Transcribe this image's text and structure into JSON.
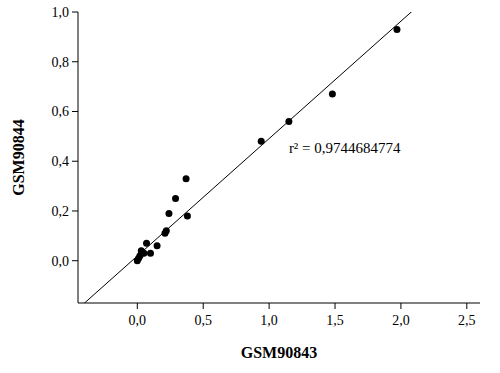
{
  "chart_data": {
    "type": "scatter",
    "x_label": "GSM90843",
    "y_label": "GSM90844",
    "annotation": "r² = 0,9744684774",
    "x": [
      0.0,
      0.01,
      0.02,
      0.03,
      0.05,
      0.07,
      0.1,
      0.15,
      0.21,
      0.22,
      0.24,
      0.29,
      0.37,
      0.38,
      0.94,
      1.15,
      1.48,
      1.97
    ],
    "values": [
      0.0,
      0.01,
      0.02,
      0.04,
      0.03,
      0.07,
      0.03,
      0.06,
      0.11,
      0.12,
      0.19,
      0.25,
      0.33,
      0.18,
      0.48,
      0.56,
      0.67,
      0.93
    ],
    "fit": {
      "slope": 0.472,
      "intercept": 0.019
    },
    "color": "#000000",
    "marker": "circle",
    "xlim": [
      -0.45,
      2.6
    ],
    "ylim": [
      -0.17,
      1.0
    ],
    "xticks": [
      {
        "value": 0,
        "label": "0,0"
      },
      {
        "value": 0.5,
        "label": "0,5"
      },
      {
        "value": 1,
        "label": "1,0"
      },
      {
        "value": 1.5,
        "label": "1,5"
      },
      {
        "value": 2,
        "label": "2,0"
      },
      {
        "value": 2.5,
        "label": "2,5"
      }
    ],
    "yticks": [
      {
        "value": 0,
        "label": "0,0"
      },
      {
        "value": 0.2,
        "label": "0,2"
      },
      {
        "value": 0.4,
        "label": "0,4"
      },
      {
        "value": 0.6,
        "label": "0,6"
      },
      {
        "value": 0.8,
        "label": "0,8"
      },
      {
        "value": 1,
        "label": "1,0"
      }
    ],
    "grid": false
  }
}
